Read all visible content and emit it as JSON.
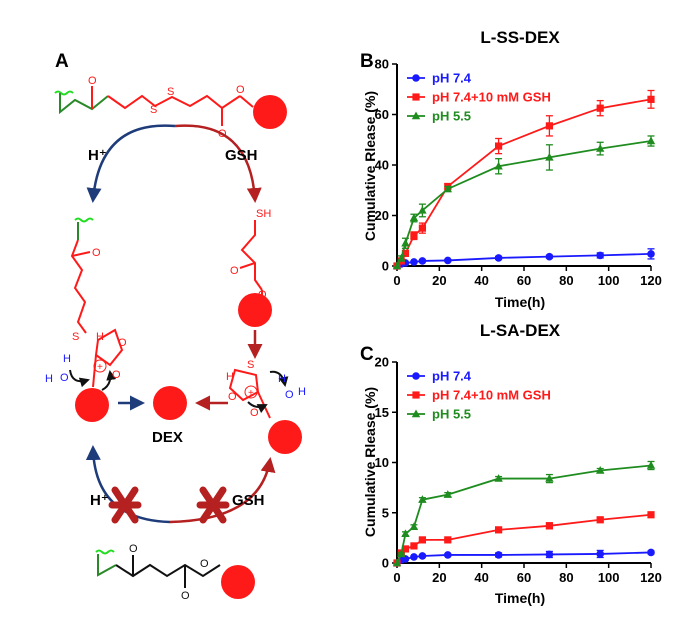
{
  "panel_a": {
    "label": "A",
    "h_plus_top": "H⁺",
    "gsh_top": "GSH",
    "h_plus_bottom": "H⁺",
    "gsh_bottom": "GSH",
    "dex_label": "DEX",
    "atom_O": "O",
    "atom_S": "S",
    "atom_SH": "SH",
    "atom_H": "H",
    "atom_oxonium_H": "H",
    "atom_oxonium_O": "O",
    "plus_sign": "+"
  },
  "colors": {
    "blue": "#1a1aff",
    "red": "#ff1a1a",
    "green": "#1e8c1e",
    "navy": "#1f3c7a",
    "darkred": "#b52020",
    "linkergreen": "#22dd22"
  },
  "chart_data": [
    {
      "panel": "B",
      "type": "line",
      "title": "L-SS-DEX",
      "xlabel": "Time(h)",
      "ylabel": "Cumulative Rlease (%)",
      "xlim": [
        0,
        120
      ],
      "ylim": [
        0,
        80
      ],
      "xticks": [
        0,
        20,
        40,
        60,
        80,
        100,
        120
      ],
      "yticks": [
        0,
        20,
        40,
        60,
        80
      ],
      "legend_position": "top-left",
      "series": [
        {
          "name": "pH 7.4",
          "color": "#1a1aff",
          "marker": "circle",
          "x": [
            0,
            2,
            4,
            8,
            12,
            24,
            48,
            72,
            96,
            120
          ],
          "y": [
            0,
            0.8,
            1.2,
            1.6,
            2.0,
            2.2,
            3.2,
            3.7,
            4.2,
            4.8
          ],
          "err": [
            0,
            0.2,
            0.3,
            0.3,
            0.3,
            0.3,
            0.6,
            0.6,
            1.0,
            2.0
          ]
        },
        {
          "name": "pH 7.4+10 mM GSH",
          "color": "#ff1a1a",
          "marker": "square",
          "x": [
            0,
            2,
            4,
            8,
            12,
            24,
            48,
            72,
            96,
            120
          ],
          "y": [
            0,
            2.0,
            5.0,
            12.0,
            15.0,
            31.5,
            47.5,
            55.5,
            62.5,
            66.0
          ],
          "err": [
            0,
            0.5,
            1.0,
            1.5,
            2.0,
            1.0,
            3.0,
            4.0,
            3.0,
            3.5
          ]
        },
        {
          "name": "pH 5.5",
          "color": "#1e8c1e",
          "marker": "triangle",
          "x": [
            0,
            2,
            4,
            8,
            12,
            24,
            48,
            72,
            96,
            120
          ],
          "y": [
            0,
            3.0,
            9.0,
            19.0,
            22.0,
            30.5,
            39.5,
            43.0,
            46.5,
            49.5
          ],
          "err": [
            0,
            1.0,
            2.0,
            1.5,
            2.5,
            1.0,
            3.0,
            5.0,
            2.5,
            2.0
          ]
        }
      ]
    },
    {
      "panel": "C",
      "type": "line",
      "title": "L-SA-DEX",
      "xlabel": "Time(h)",
      "ylabel": "Cumulative Rlease (%)",
      "xlim": [
        0,
        120
      ],
      "ylim": [
        0,
        20
      ],
      "xticks": [
        0,
        20,
        40,
        60,
        80,
        100,
        120
      ],
      "yticks": [
        0,
        5,
        10,
        15,
        20
      ],
      "legend_position": "top-left",
      "series": [
        {
          "name": "pH 7.4",
          "color": "#1a1aff",
          "marker": "circle",
          "x": [
            0,
            2,
            4,
            8,
            12,
            24,
            48,
            72,
            96,
            120
          ],
          "y": [
            0,
            0.3,
            0.4,
            0.6,
            0.7,
            0.8,
            0.8,
            0.85,
            0.9,
            1.05
          ],
          "err": [
            0,
            0.1,
            0.1,
            0.1,
            0.1,
            0.1,
            0.2,
            0.3,
            0.35,
            0.15
          ]
        },
        {
          "name": "pH 7.4+10 mM GSH",
          "color": "#ff1a1a",
          "marker": "square",
          "x": [
            0,
            2,
            4,
            8,
            12,
            24,
            48,
            72,
            96,
            120
          ],
          "y": [
            0,
            1.0,
            1.4,
            1.7,
            2.3,
            2.3,
            3.3,
            3.7,
            4.3,
            4.8
          ],
          "err": [
            0,
            0.1,
            0.1,
            0.1,
            0.1,
            0.1,
            0.2,
            0.3,
            0.2,
            0.15
          ]
        },
        {
          "name": "pH 5.5",
          "color": "#1e8c1e",
          "marker": "triangle",
          "x": [
            0,
            2,
            4,
            8,
            12,
            24,
            48,
            72,
            96,
            120
          ],
          "y": [
            0,
            0.9,
            2.9,
            3.6,
            6.3,
            6.8,
            8.4,
            8.4,
            9.2,
            9.7
          ],
          "err": [
            0,
            0.1,
            0.2,
            0.2,
            0.2,
            0.2,
            0.2,
            0.4,
            0.2,
            0.4
          ]
        }
      ]
    }
  ]
}
